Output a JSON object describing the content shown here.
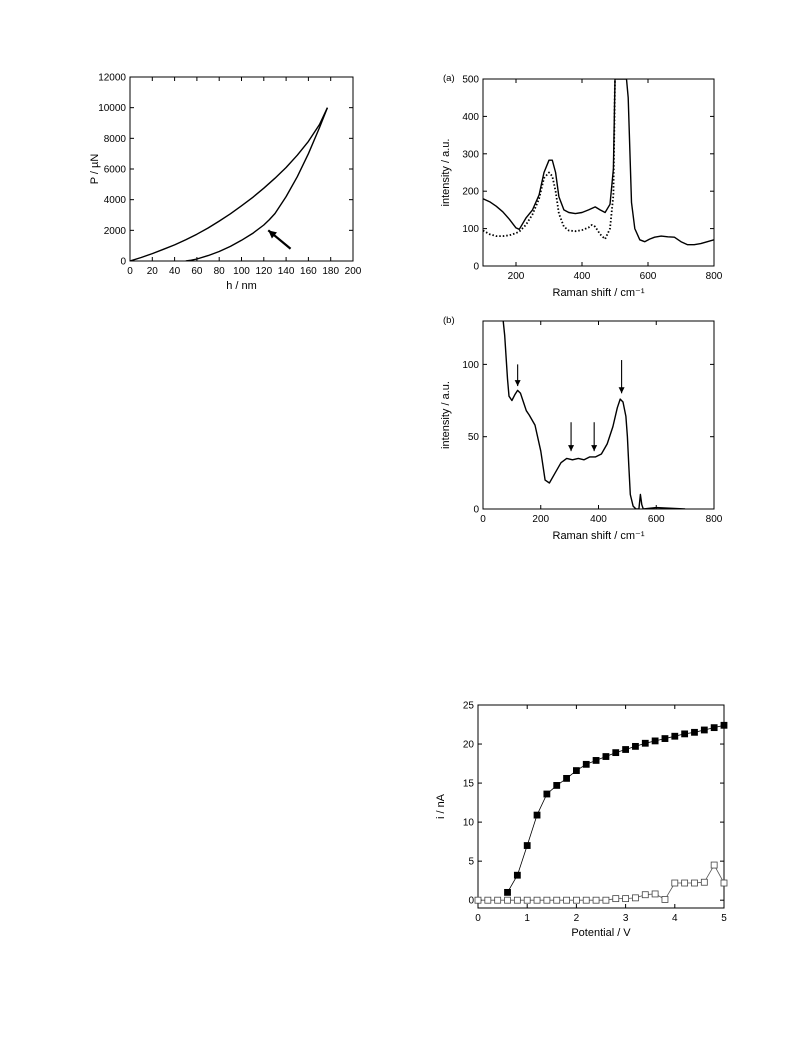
{
  "chart_data": [
    {
      "id": "load_displacement",
      "type": "line",
      "title": "",
      "xlabel": "h / nm",
      "ylabel": "P / µN",
      "xlim": [
        0,
        200
      ],
      "ylim": [
        0,
        12000
      ],
      "xticks": [
        0,
        20,
        40,
        60,
        80,
        100,
        120,
        140,
        160,
        180,
        200
      ],
      "yticks": [
        0,
        2000,
        4000,
        6000,
        8000,
        10000,
        12000
      ],
      "grid": false,
      "series": [
        {
          "x": [
            0,
            10,
            20,
            30,
            40,
            50,
            60,
            70,
            80,
            90,
            100,
            110,
            120,
            130,
            140,
            150,
            160,
            170,
            177
          ],
          "y": [
            0,
            230,
            480,
            760,
            1050,
            1380,
            1750,
            2150,
            2600,
            3080,
            3600,
            4150,
            4750,
            5400,
            6100,
            6900,
            7800,
            8900,
            10000
          ]
        },
        {
          "x": [
            177,
            170,
            160,
            150,
            140,
            130,
            125,
            120,
            110,
            100,
            90,
            80,
            70,
            60,
            55,
            50
          ],
          "y": [
            10000,
            8700,
            7000,
            5500,
            4200,
            3100,
            2700,
            2350,
            1800,
            1350,
            950,
            620,
            350,
            130,
            50,
            0
          ]
        }
      ],
      "annotations": [
        {
          "type": "arrow",
          "from": [
            144,
            800
          ],
          "to": [
            124,
            2000
          ]
        }
      ]
    },
    {
      "id": "raman_a",
      "type": "line",
      "title": "",
      "panel_label": "(a)",
      "xlabel": "Raman shift / cm⁻¹",
      "ylabel": "intensity / a.u.",
      "xlim": [
        100,
        800
      ],
      "ylim": [
        0,
        500
      ],
      "xticks": [
        200,
        400,
        600,
        800
      ],
      "yticks": [
        0,
        100,
        200,
        300,
        400,
        500
      ],
      "grid": false,
      "series": [
        {
          "style": "solid",
          "x": [
            100,
            120,
            140,
            160,
            180,
            200,
            210,
            230,
            250,
            270,
            285,
            300,
            310,
            320,
            330,
            345,
            360,
            380,
            400,
            420,
            440,
            455,
            470,
            485,
            495,
            500,
            505,
            515,
            525,
            535,
            540,
            550,
            560,
            575,
            590,
            605,
            620,
            640,
            660,
            680,
            700,
            720,
            740,
            760,
            780,
            800
          ],
          "y": [
            180,
            172,
            160,
            145,
            125,
            102,
            98,
            128,
            150,
            190,
            250,
            283,
            283,
            250,
            185,
            150,
            143,
            140,
            143,
            150,
            158,
            150,
            143,
            165,
            260,
            500,
            500,
            500,
            500,
            500,
            450,
            170,
            100,
            70,
            65,
            72,
            77,
            80,
            78,
            77,
            65,
            57,
            57,
            60,
            65,
            70
          ]
        },
        {
          "style": "dotted",
          "x": [
            100,
            120,
            140,
            160,
            180,
            200,
            210,
            230,
            250,
            270,
            285,
            300,
            310,
            320,
            330,
            345,
            360,
            380,
            400,
            420,
            430,
            440,
            455,
            470,
            485,
            495,
            500
          ],
          "y": [
            95,
            85,
            80,
            80,
            82,
            88,
            92,
            110,
            138,
            180,
            235,
            250,
            240,
            200,
            140,
            105,
            95,
            93,
            96,
            103,
            110,
            105,
            85,
            72,
            100,
            190,
            500
          ]
        }
      ]
    },
    {
      "id": "raman_b",
      "type": "line",
      "title": "",
      "panel_label": "(b)",
      "xlabel": "Raman shift / cm⁻¹",
      "ylabel": "intensity / a.u.",
      "xlim": [
        0,
        800
      ],
      "ylim": [
        0,
        130
      ],
      "xticks": [
        0,
        200,
        400,
        600,
        800
      ],
      "yticks": [
        0,
        50,
        100
      ],
      "grid": false,
      "series": [
        {
          "style": "solid",
          "x": [
            70,
            75,
            80,
            85,
            90,
            100,
            110,
            120,
            130,
            140,
            150,
            160,
            180,
            200,
            215,
            230,
            250,
            270,
            290,
            310,
            330,
            350,
            370,
            390,
            410,
            430,
            450,
            465,
            475,
            485,
            495,
            500,
            505,
            510,
            520,
            530,
            540,
            545,
            550,
            555,
            600,
            700
          ],
          "y": [
            130,
            120,
            105,
            90,
            78,
            75,
            79,
            82,
            80,
            74,
            68,
            65,
            58,
            40,
            20,
            18,
            25,
            32,
            35,
            34,
            35,
            34,
            36,
            36,
            38,
            45,
            57,
            70,
            76,
            74,
            64,
            50,
            30,
            10,
            2,
            0,
            0,
            10,
            3,
            0,
            1,
            0
          ]
        }
      ],
      "annotations": [
        {
          "type": "arrow",
          "x": 120,
          "from_y": 100,
          "to_y": 85
        },
        {
          "type": "arrow",
          "x": 305,
          "from_y": 60,
          "to_y": 40
        },
        {
          "type": "arrow",
          "x": 385,
          "from_y": 60,
          "to_y": 40
        },
        {
          "type": "arrow",
          "x": 480,
          "from_y": 103,
          "to_y": 80
        }
      ]
    },
    {
      "id": "current_potential",
      "type": "line",
      "title": "",
      "xlabel": "Potential / V",
      "ylabel": "i / nA",
      "xlim": [
        0,
        5
      ],
      "ylim": [
        -1,
        25
      ],
      "xticks": [
        0,
        1,
        2,
        3,
        4,
        5
      ],
      "yticks": [
        0,
        5,
        10,
        15,
        20,
        25
      ],
      "grid": false,
      "series": [
        {
          "marker": "filled-square",
          "x": [
            0.6,
            0.8,
            1.0,
            1.2,
            1.4,
            1.6,
            1.8,
            2.0,
            2.2,
            2.4,
            2.6,
            2.8,
            3.0,
            3.2,
            3.4,
            3.6,
            3.8,
            4.0,
            4.2,
            4.4,
            4.6,
            4.8,
            5.0
          ],
          "y": [
            1.0,
            3.2,
            7.0,
            10.9,
            13.6,
            14.7,
            15.6,
            16.6,
            17.4,
            17.9,
            18.4,
            18.9,
            19.3,
            19.7,
            20.1,
            20.4,
            20.7,
            21.0,
            21.3,
            21.5,
            21.8,
            22.1,
            22.4
          ]
        },
        {
          "marker": "open-square",
          "x": [
            0.0,
            0.2,
            0.4,
            0.6,
            0.8,
            1.0,
            1.2,
            1.4,
            1.6,
            1.8,
            2.0,
            2.2,
            2.4,
            2.6,
            2.8,
            3.0,
            3.2,
            3.4,
            3.6,
            3.8,
            4.0,
            4.2,
            4.4,
            4.6,
            4.8,
            5.0
          ],
          "y": [
            0,
            0,
            0,
            0,
            0,
            0,
            0,
            0,
            0,
            0,
            0,
            0,
            0,
            0,
            0.2,
            0.2,
            0.3,
            0.7,
            0.8,
            0.1,
            2.2,
            2.2,
            2.2,
            2.3,
            4.5,
            2.2
          ]
        }
      ]
    }
  ]
}
